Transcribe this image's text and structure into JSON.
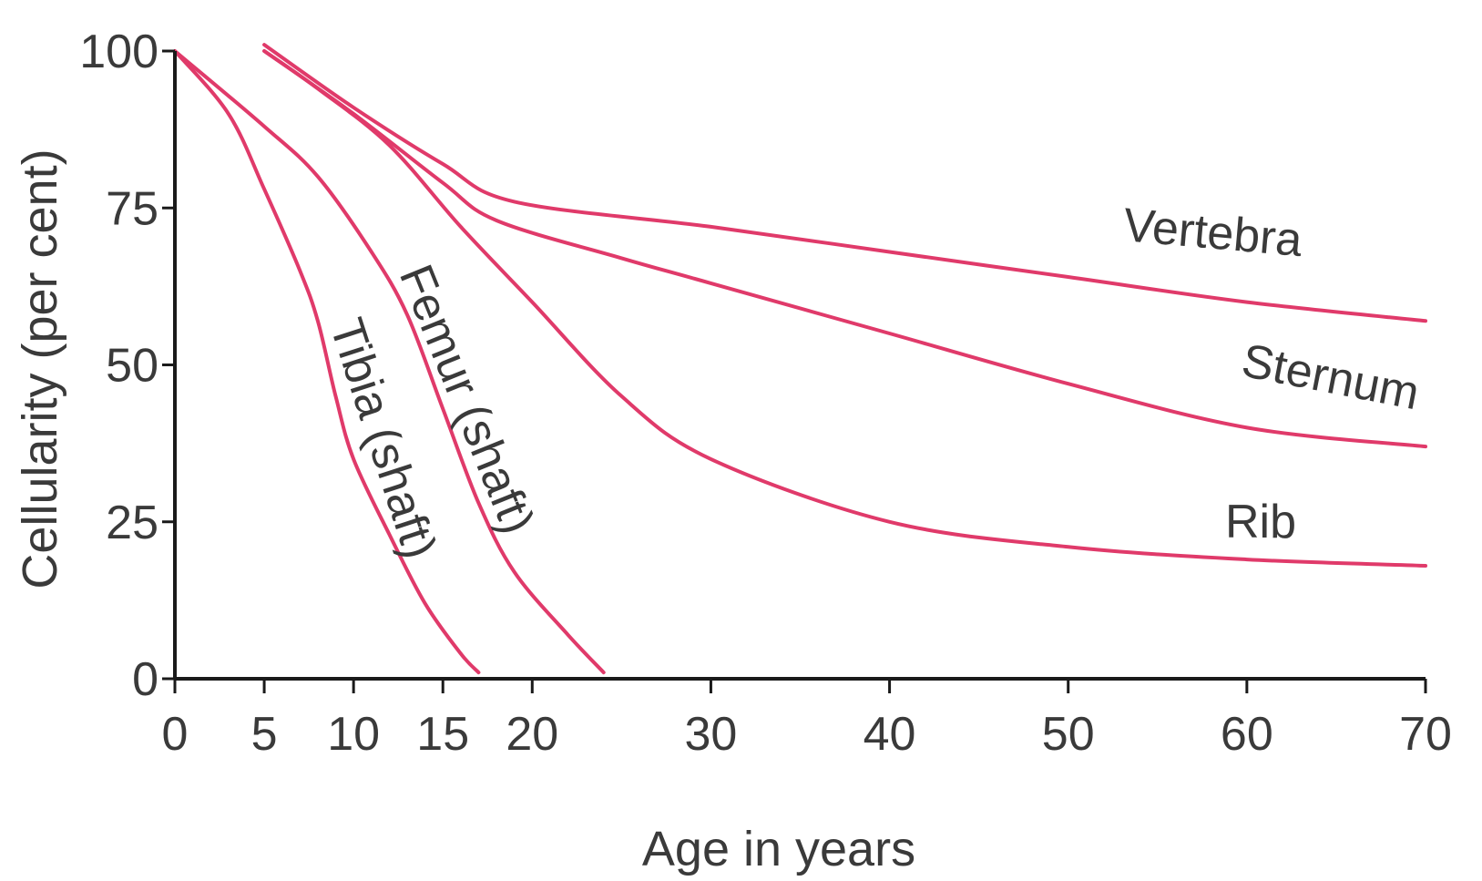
{
  "chart_data": {
    "type": "line",
    "xlabel": "Age in years",
    "ylabel": "Cellularity (per cent)",
    "xlim": [
      0,
      70
    ],
    "ylim": [
      0,
      100
    ],
    "x_ticks": [
      0,
      5,
      10,
      15,
      20,
      30,
      40,
      50,
      60,
      70
    ],
    "y_ticks": [
      0,
      25,
      50,
      75,
      100
    ],
    "grid": false,
    "line_color": "#e03a6a",
    "series": [
      {
        "name": "Vertebra",
        "points": [
          [
            5,
            101
          ],
          [
            10,
            91
          ],
          [
            15,
            82
          ],
          [
            19,
            76
          ],
          [
            30,
            72
          ],
          [
            40,
            68
          ],
          [
            50,
            64
          ],
          [
            60,
            60
          ],
          [
            70,
            57
          ]
        ]
      },
      {
        "name": "Sternum",
        "points": [
          [
            5,
            100
          ],
          [
            10,
            90
          ],
          [
            15,
            79
          ],
          [
            18,
            73
          ],
          [
            25,
            67
          ],
          [
            30,
            63
          ],
          [
            40,
            55
          ],
          [
            50,
            47
          ],
          [
            60,
            40
          ],
          [
            70,
            37
          ]
        ]
      },
      {
        "name": "Rib",
        "points": [
          [
            5,
            100
          ],
          [
            8,
            94
          ],
          [
            12,
            85
          ],
          [
            16,
            72
          ],
          [
            20,
            60
          ],
          [
            25,
            45
          ],
          [
            30,
            35
          ],
          [
            40,
            25
          ],
          [
            50,
            21
          ],
          [
            60,
            19
          ],
          [
            70,
            18
          ]
        ]
      },
      {
        "name": "Femur (shaft)",
        "points": [
          [
            0,
            100
          ],
          [
            5,
            88
          ],
          [
            8,
            80
          ],
          [
            11,
            68
          ],
          [
            13,
            58
          ],
          [
            15,
            43
          ],
          [
            17,
            28
          ],
          [
            19,
            17
          ],
          [
            22,
            7
          ],
          [
            24,
            1
          ]
        ]
      },
      {
        "name": "Tibia (shaft)",
        "points": [
          [
            0,
            100
          ],
          [
            3,
            90
          ],
          [
            5,
            78
          ],
          [
            7,
            65
          ],
          [
            8,
            57
          ],
          [
            9,
            45
          ],
          [
            10,
            35
          ],
          [
            12,
            23
          ],
          [
            14,
            12
          ],
          [
            16,
            4
          ],
          [
            17,
            1
          ]
        ]
      }
    ]
  }
}
